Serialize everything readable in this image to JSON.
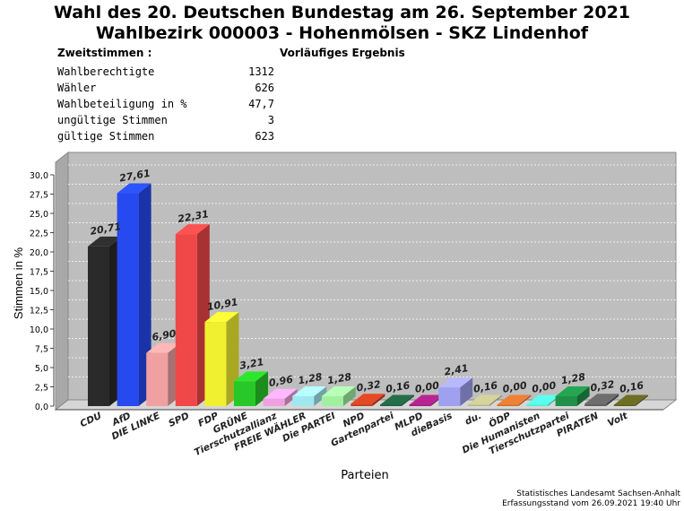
{
  "title_line1": "Wahl des 20. Deutschen Bundestag am 26. September 2021",
  "title_line2": "Wahlbezirk 000003 - Hohenmölsen - SKZ Lindenhof",
  "zweitstimmen_label": "Zweitstimmen :",
  "preliminary_label": "Vorläufiges Ergebnis",
  "stats": [
    {
      "label": "Wahlberechtigte",
      "value": "1312"
    },
    {
      "label": "Wähler",
      "value": "626"
    },
    {
      "label": "Wahlbeteiligung in %",
      "value": "47,7"
    },
    {
      "label": "ungültige Stimmen",
      "value": "3"
    },
    {
      "label": "gültige Stimmen",
      "value": "623"
    }
  ],
  "source_line1": "Statistisches Landesamt Sachsen-Anhalt",
  "source_line2": "Erfassungsstand vom 26.09.2021 19:40 Uhr",
  "chart_data": {
    "type": "bar",
    "xlabel": "Parteien",
    "ylabel": "Stimmen in %",
    "ylim": [
      0,
      30
    ],
    "yticks": [
      "0,0",
      "2,5",
      "5,0",
      "7,5",
      "10,0",
      "12,5",
      "15,0",
      "17,5",
      "20,0",
      "22,5",
      "25,0",
      "27,5",
      "30,0"
    ],
    "grid": true,
    "categories": [
      "CDU",
      "AfD",
      "DIE LINKE",
      "SPD",
      "FDP",
      "GRÜNE",
      "Tierschutzallianz",
      "FREIE WÄHLER",
      "Die PARTEI",
      "NPD",
      "Gartenpartei",
      "MLPD",
      "dieBasis",
      "du.",
      "ÖDP",
      "Die Humanisten",
      "Tierschutzpartei",
      "PIRATEN",
      "Volt"
    ],
    "values": [
      20.71,
      27.61,
      6.9,
      22.31,
      10.91,
      3.21,
      0.96,
      1.28,
      1.28,
      0.32,
      0.16,
      0.0,
      2.41,
      0.16,
      0.0,
      0.0,
      1.28,
      0.32,
      0.16
    ],
    "labels": [
      "20,71",
      "27,61",
      "6,90",
      "22,31",
      "10,91",
      "3,21",
      "0,96",
      "1,28",
      "1,28",
      "0,32",
      "0,16",
      "0,00",
      "2,41",
      "0,16",
      "0,00",
      "0,00",
      "1,28",
      "0,32",
      "0,16"
    ],
    "colors": [
      "#2a2a2a",
      "#2649f0",
      "#f0a0a0",
      "#f04848",
      "#f0f030",
      "#28c828",
      "#f0a0e0",
      "#a0e8f0",
      "#a0f0a0",
      "#c84020",
      "#206040",
      "#a02080",
      "#a0a0f0",
      "#b8b888",
      "#d07030",
      "#50f0d0",
      "#209048",
      "#606060",
      "#606020"
    ]
  }
}
